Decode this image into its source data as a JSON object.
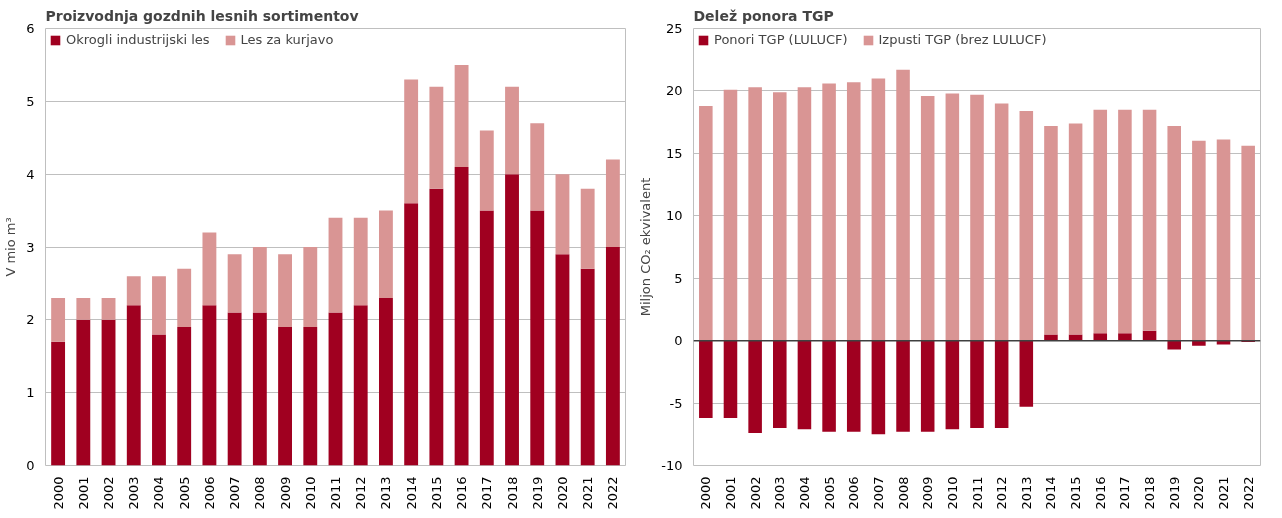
{
  "chart_data": [
    {
      "type": "bar",
      "title": "Proizvodnja gozdnih lesnih sortimentov",
      "ylabel": "V mio m³",
      "stacked": true,
      "legend": "top",
      "grid": "y",
      "categories": [
        "2000",
        "2001",
        "2002",
        "2003",
        "2004",
        "2005",
        "2006",
        "2007",
        "2008",
        "2009",
        "2010",
        "2011",
        "2012",
        "2013",
        "2014",
        "2015",
        "2016",
        "2017",
        "2018",
        "2019",
        "2020",
        "2021",
        "2022"
      ],
      "ylim": [
        0,
        6
      ],
      "yticks": [
        0,
        1,
        2,
        3,
        4,
        5,
        6
      ],
      "series": [
        {
          "name": "Okrogli industrijski les",
          "color": "#a00020",
          "values": [
            1.7,
            2.0,
            2.0,
            2.2,
            1.8,
            1.9,
            2.2,
            2.1,
            2.1,
            1.9,
            1.9,
            2.1,
            2.2,
            2.3,
            3.6,
            3.8,
            4.1,
            3.5,
            4.0,
            3.5,
            2.9,
            2.7,
            3.0
          ]
        },
        {
          "name": "Les za kurjavo",
          "color": "#d99594",
          "values": [
            0.6,
            0.3,
            0.3,
            0.4,
            0.8,
            0.8,
            1.0,
            0.8,
            0.9,
            1.0,
            1.1,
            1.3,
            1.2,
            1.2,
            1.7,
            1.4,
            1.4,
            1.1,
            1.2,
            1.2,
            1.1,
            1.1,
            1.2
          ]
        }
      ]
    },
    {
      "type": "bar",
      "title": "Delež ponora TGP",
      "ylabel": "Miljon CO₂ ekvivalent",
      "stacked": true,
      "legend": "top",
      "grid": "y",
      "categories": [
        "2000",
        "2001",
        "2002",
        "2003",
        "2004",
        "2005",
        "2006",
        "2007",
        "2008",
        "2009",
        "2010",
        "2011",
        "2012",
        "2013",
        "2014",
        "2015",
        "2016",
        "2017",
        "2018",
        "2019",
        "2020",
        "2021",
        "2022"
      ],
      "ylim": [
        -10,
        25
      ],
      "yticks": [
        -10,
        -5,
        0,
        5,
        10,
        15,
        20,
        25
      ],
      "ref_lines": [
        {
          "axis": "y",
          "value": 0,
          "color": "#404040"
        }
      ],
      "series": [
        {
          "name": "Ponori TGP (LULUCF)",
          "color": "#a00020",
          "values": [
            -6.2,
            -6.2,
            -7.4,
            -7.0,
            -7.1,
            -7.3,
            -7.3,
            -7.5,
            -7.3,
            -7.3,
            -7.1,
            -7.0,
            -7.0,
            -5.3,
            0.5,
            0.5,
            0.6,
            0.6,
            0.8,
            -0.7,
            -0.4,
            -0.3,
            -0.1
          ]
        },
        {
          "name": "Izpusti TGP (brez LULUCF)",
          "color": "#d99594",
          "values": [
            18.8,
            20.1,
            20.3,
            19.9,
            20.3,
            20.6,
            20.7,
            21.0,
            21.7,
            19.6,
            19.8,
            19.7,
            19.0,
            18.4,
            16.7,
            16.9,
            17.9,
            17.9,
            17.7,
            17.2,
            16.0,
            16.1,
            15.6
          ]
        }
      ]
    }
  ]
}
